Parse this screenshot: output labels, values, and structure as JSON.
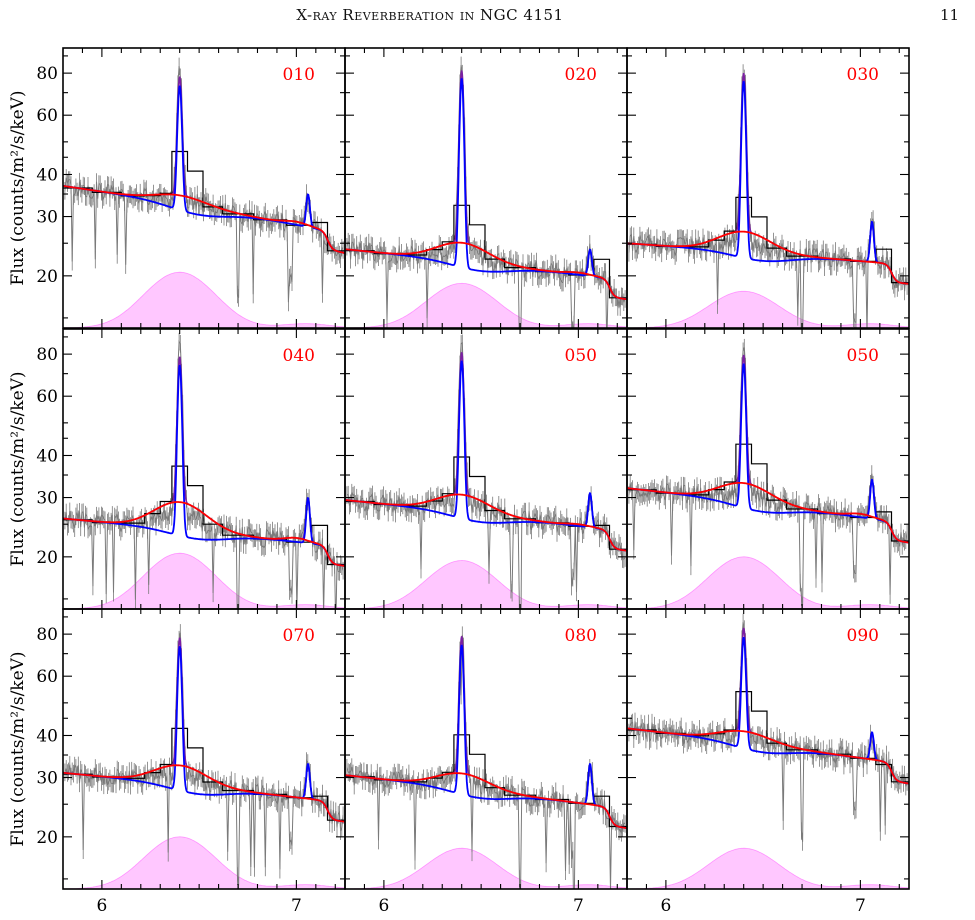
{
  "header": {
    "running_head": "X-ray Reverberation in NGC 4151",
    "page_number": "11"
  },
  "legend_colors": {
    "data": "#7a7a7a",
    "binned": "#000000",
    "total_model": "#ff0000",
    "blue_model": "#0000ff",
    "purple_model": "#7b1fa2",
    "pink_profile": "#ff00ff"
  },
  "chart_data": {
    "type": "line",
    "ylabel": "Flux (counts/m²/s/keV)",
    "x_ticks": [
      "6",
      "7"
    ],
    "x_tick_values": [
      6,
      7
    ],
    "y_ticks": [
      "20",
      "30",
      "40",
      "60",
      "80"
    ],
    "y_tick_values": [
      20,
      30,
      40,
      60,
      80
    ],
    "xlim": [
      5.8,
      7.25
    ],
    "ylim": [
      14,
      95
    ],
    "yscale": "log",
    "grid": false,
    "panels": [
      {
        "label": "010",
        "c0": 37,
        "c1": 28,
        "peak": 85,
        "broad": 39,
        "pink": 20.5,
        "k7": 36,
        "r7": 29,
        "b7": 35
      },
      {
        "label": "020",
        "c0": 24,
        "c1": 20,
        "peak": 86,
        "broad": 27,
        "pink": 19,
        "k7": 28,
        "r7": 20.5,
        "b7": 24
      },
      {
        "label": "030",
        "c0": 25,
        "c1": 22,
        "peak": 84,
        "broad": 28.5,
        "pink": 18,
        "k7": 30,
        "r7": 22,
        "b7": 29
      },
      {
        "label": "040",
        "c0": 26,
        "c1": 22,
        "peak": 83,
        "broad": 31,
        "pink": 20.5,
        "k7": 31,
        "r7": 23,
        "b7": 30
      },
      {
        "label": "050",
        "c0": 29.5,
        "c1": 24.5,
        "peak": 86,
        "broad": 33,
        "pink": 19.5,
        "k7": 31,
        "r7": 25,
        "b7": 31
      },
      {
        "label": "050",
        "c0": 32,
        "c1": 26,
        "peak": 85,
        "broad": 36,
        "pink": 20,
        "k7": 34,
        "r7": 27,
        "b7": 34
      },
      {
        "label": "070",
        "c0": 31,
        "c1": 26,
        "peak": 83,
        "broad": 35,
        "pink": 20,
        "k7": 33,
        "r7": 26,
        "b7": 33
      },
      {
        "label": "080",
        "c0": 30.5,
        "c1": 25,
        "peak": 84,
        "broad": 33.5,
        "pink": 18.5,
        "k7": 33,
        "r7": 25,
        "b7": 33
      },
      {
        "label": "090",
        "c0": 42,
        "c1": 34,
        "peak": 90,
        "broad": 45,
        "pink": 18.5,
        "k7": 41,
        "r7": 34,
        "b7": 41
      }
    ]
  }
}
